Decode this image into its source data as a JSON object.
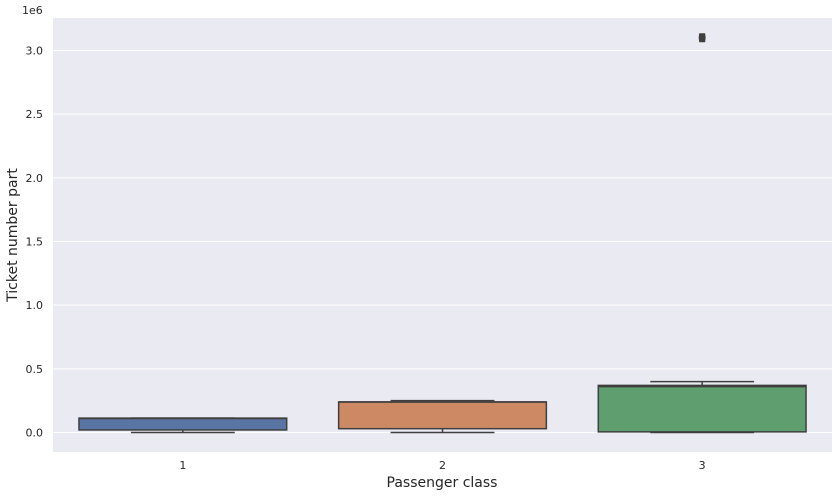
{
  "chart_data": {
    "type": "box",
    "xlabel": "Passenger class",
    "ylabel": "Ticket number part",
    "offset_text": "1e6",
    "categories": [
      "1",
      "2",
      "3"
    ],
    "ylim": [
      -0.16,
      3.25
    ],
    "yticks": [
      0.0,
      0.5,
      1.0,
      1.5,
      2.0,
      2.5,
      3.0
    ],
    "ytick_labels": [
      "0.0",
      "0.5",
      "1.0",
      "1.5",
      "2.0",
      "2.5",
      "3.0"
    ],
    "grid": true,
    "background": "#eaeaf2",
    "boxes": [
      {
        "category": "1",
        "color": "#5875a4",
        "whisker_low": 0.0,
        "q1": 0.02,
        "median": 0.11,
        "q3": 0.113,
        "whisker_high": 0.113,
        "outliers": []
      },
      {
        "category": "2",
        "color": "#cc8963",
        "whisker_low": 0.0,
        "q1": 0.03,
        "median": 0.24,
        "q3": 0.24,
        "whisker_high": 0.25,
        "outliers": []
      },
      {
        "category": "3",
        "color": "#5f9e6e",
        "whisker_low": 0.0,
        "q1": 0.005,
        "median": 0.36,
        "q3": 0.37,
        "whisker_high": 0.4,
        "outliers": [
          3.1
        ]
      }
    ]
  }
}
